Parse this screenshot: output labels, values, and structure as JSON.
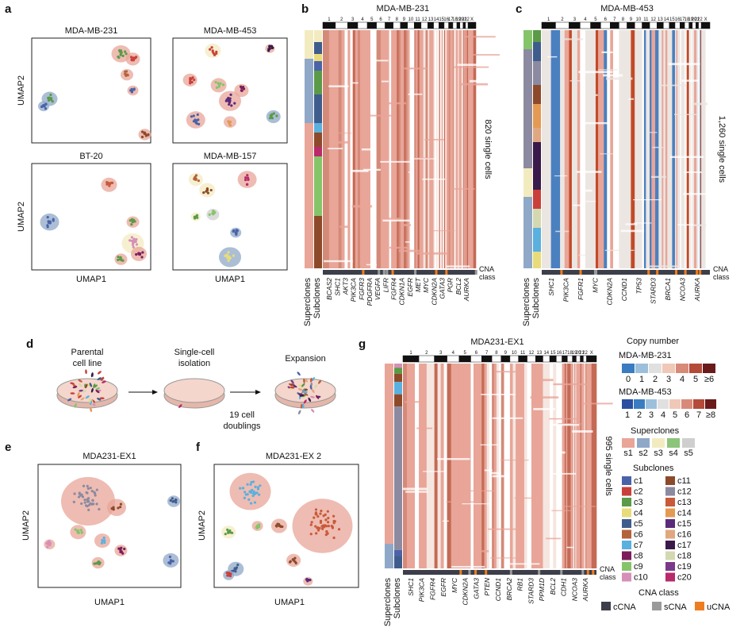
{
  "chromosomes": [
    "1",
    "2",
    "3",
    "4",
    "5",
    "6",
    "7",
    "8",
    "9",
    "10",
    "11",
    "12",
    "13",
    "14",
    "15",
    "16",
    "17",
    "18",
    "19",
    "20",
    "21",
    "22",
    "X"
  ],
  "a": {
    "letter": "a",
    "plots": [
      "MDA-MB-231",
      "MDA-MB-453",
      "BT-20",
      "MDA-MB-157"
    ],
    "xlabels": [
      "UMAP1",
      "UMAP1"
    ],
    "ylabels": [
      "UMAP2",
      "UMAP2"
    ]
  },
  "b": {
    "letter": "b",
    "title": "MDA-MB-231",
    "cells": "820 single cells",
    "rows": [
      "Superclones",
      "Subclones"
    ],
    "cna": [
      "CNA",
      "class"
    ],
    "genes": [
      "BCAS2",
      "SHC1",
      "AKT3",
      "PIK3CA",
      "FGFR3",
      "PDGFRA",
      "VEGFA",
      "LIFR",
      "FGFR4",
      "CDKN1A",
      "EGFR",
      "MET",
      "MYC",
      "CDKN2A",
      "GATA3",
      "PGR",
      "BCL2",
      "AURKA"
    ]
  },
  "c": {
    "letter": "c",
    "title": "MDA-MB-453",
    "cells": "1,260 single cells",
    "rows": [
      "Superclones",
      "Subclones"
    ],
    "cna": [
      "CNA",
      "class"
    ],
    "genes": [
      "SHC1",
      "PIK3CA",
      "FGFR1",
      "MYC",
      "CDKN2A",
      "CCND1",
      "TP53",
      "STARD3",
      "BRCA1",
      "NCOA3",
      "AURKA"
    ]
  },
  "d": {
    "letter": "d",
    "parental": [
      "Parental",
      "cell line"
    ],
    "isolation": [
      "Single-cell",
      "isolation"
    ],
    "expansion": "Expansion",
    "doublings": [
      "19 cell",
      "doublings"
    ]
  },
  "e": {
    "letter": "e",
    "title": "MDA231-EX1",
    "xlabel": "UMAP1",
    "ylabel": "UMAP2"
  },
  "f": {
    "letter": "f",
    "title": "MDA231-EX 2",
    "xlabel": "UMAP1",
    "ylabel": "UMAP2"
  },
  "g": {
    "letter": "g",
    "title": "MDA231-EX1",
    "cells": "995 single cells",
    "rows": [
      "Superclones",
      "Subclones"
    ],
    "cna": [
      "CNA",
      "class"
    ],
    "genes": [
      "SHC1",
      "PIK3CA",
      "FGFR4",
      "EGFR",
      "MYC",
      "CDKN2A",
      "GATA3",
      "PTEN",
      "CCND1",
      "BRCA2",
      "RB1",
      "STARD3",
      "PPM1D",
      "BCL2",
      "CDH1",
      "NCOA3",
      "AURKA"
    ]
  },
  "legend": {
    "copy_number": "Copy number",
    "mda231": "MDA-MB-231",
    "mda231_scale": [
      "0",
      "1",
      "2",
      "3",
      "4",
      "5",
      "≥6"
    ],
    "mda453": "MDA-MB-453",
    "mda453_scale": [
      "1",
      "2",
      "3",
      "4",
      "5",
      "6",
      "7",
      "≥8"
    ],
    "superclones": "Superclones",
    "superclone_items": [
      "s1",
      "s2",
      "s3",
      "s4",
      "s5"
    ],
    "subclones": "Subclones",
    "subclone_items": [
      "c1",
      "c2",
      "c3",
      "c4",
      "c5",
      "c6",
      "c7",
      "c8",
      "c9",
      "c10",
      "c11",
      "c12",
      "c13",
      "c14",
      "c15",
      "c16",
      "c17",
      "c18",
      "c19",
      "c20"
    ],
    "cna_class": "CNA class",
    "cna_items": [
      "cCNA",
      "sCNA",
      "uCNA"
    ]
  }
}
